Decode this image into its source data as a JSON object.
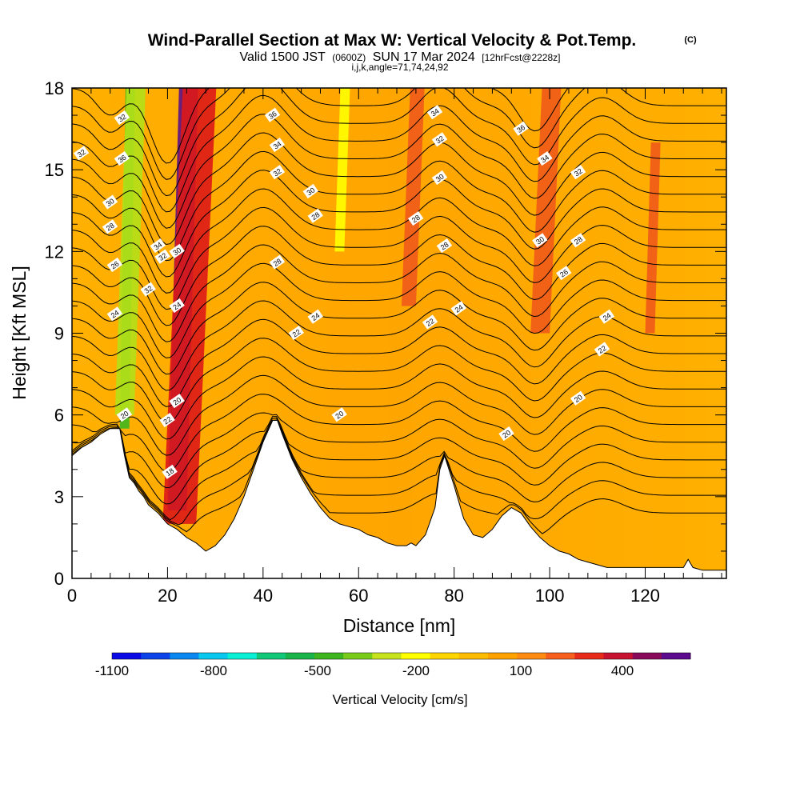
{
  "header": {
    "title": "Wind-Parallel Section at Max W: Vertical Velocity & Pot.Temp.",
    "title_mark": "(C)",
    "subtitle_valid": "Valid 1500 JST",
    "subtitle_utc": "(0600Z)",
    "subtitle_date": "SUN 17 Mar 2024",
    "subtitle_fcst": "[12hrFcst@2228z]",
    "subtitle_indices": "i,j,k,angle=71,74,24,92"
  },
  "chart_data": {
    "type": "contour_section",
    "xlabel": "Distance [nm]",
    "ylabel": "Height [Kft MSL]",
    "xlim": [
      0,
      137
    ],
    "ylim": [
      0,
      18
    ],
    "x_ticks": [
      0,
      20,
      40,
      60,
      80,
      100,
      120
    ],
    "y_ticks": [
      0,
      3,
      6,
      9,
      12,
      15,
      18
    ],
    "terrain_kft": {
      "x": [
        0,
        2,
        4,
        6,
        8,
        10,
        11,
        12,
        13,
        14,
        15,
        16,
        18,
        20,
        22,
        24,
        26,
        28,
        30,
        32,
        34,
        36,
        38,
        40,
        42,
        43,
        44,
        46,
        48,
        50,
        52,
        54,
        56,
        58,
        60,
        62,
        64,
        66,
        68,
        70,
        71,
        72,
        74,
        76,
        77,
        78,
        80,
        82,
        84,
        86,
        88,
        90,
        92,
        94,
        96,
        98,
        100,
        102,
        104,
        106,
        108,
        110,
        112,
        114,
        116,
        118,
        120,
        122,
        124,
        126,
        128,
        129,
        130,
        132,
        134,
        136,
        137
      ],
      "y": [
        4.5,
        4.8,
        5.0,
        5.3,
        5.5,
        5.5,
        4.5,
        3.7,
        3.5,
        3.2,
        3.0,
        2.7,
        2.4,
        2.0,
        1.8,
        1.5,
        1.3,
        1.0,
        1.2,
        1.6,
        2.2,
        3.0,
        4.0,
        5.0,
        5.8,
        5.8,
        5.3,
        4.4,
        3.7,
        3.1,
        2.6,
        2.2,
        2.0,
        1.9,
        1.8,
        1.6,
        1.5,
        1.3,
        1.2,
        1.2,
        1.3,
        1.2,
        1.6,
        2.6,
        4.0,
        4.5,
        3.4,
        2.2,
        1.6,
        1.5,
        1.8,
        2.3,
        2.6,
        2.4,
        1.9,
        1.5,
        1.2,
        1.0,
        0.9,
        0.7,
        0.6,
        0.5,
        0.4,
        0.4,
        0.4,
        0.4,
        0.4,
        0.4,
        0.4,
        0.4,
        0.4,
        0.7,
        0.4,
        0.3,
        0.3,
        0.3,
        0.3
      ]
    },
    "vertical_velocity_bands_cm_s": [
      {
        "x": [
          10,
          12
        ],
        "y": [
          5.5,
          18
        ],
        "value": -500,
        "color": "#3fb61e"
      },
      {
        "x": [
          9,
          13
        ],
        "y": [
          6,
          18
        ],
        "value": -300,
        "color": "#b4e01a"
      },
      {
        "x": [
          20,
          24
        ],
        "y": [
          2.5,
          18
        ],
        "value": 500,
        "color": "#5c0f86"
      },
      {
        "x": [
          19,
          26
        ],
        "y": [
          2.0,
          18
        ],
        "value": 300,
        "color": "#dd1818"
      },
      {
        "x": [
          69,
          72
        ],
        "y": [
          10,
          18
        ],
        "value": 150,
        "color": "#f05a1a"
      },
      {
        "x": [
          96,
          100
        ],
        "y": [
          9,
          18
        ],
        "value": 150,
        "color": "#f05a1a"
      },
      {
        "x": [
          55,
          57
        ],
        "y": [
          12,
          18
        ],
        "value": -200,
        "color": "#ffff00"
      },
      {
        "x": [
          120,
          122
        ],
        "y": [
          9,
          16
        ],
        "value": 150,
        "color": "#f05a1a"
      }
    ],
    "theta_contours_c": [
      18,
      20,
      22,
      24,
      26,
      28,
      30,
      32,
      34,
      36
    ],
    "theta_labels": [
      {
        "x": 20.5,
        "y": 3.9,
        "text": "18"
      },
      {
        "x": 11,
        "y": 6.0,
        "text": "20"
      },
      {
        "x": 22,
        "y": 6.5,
        "text": "20"
      },
      {
        "x": 56,
        "y": 6.0,
        "text": "20"
      },
      {
        "x": 91,
        "y": 5.3,
        "text": "20"
      },
      {
        "x": 106,
        "y": 6.6,
        "text": "20"
      },
      {
        "x": 20,
        "y": 5.8,
        "text": "22"
      },
      {
        "x": 47,
        "y": 9.0,
        "text": "22"
      },
      {
        "x": 75,
        "y": 9.4,
        "text": "22"
      },
      {
        "x": 111,
        "y": 8.4,
        "text": "22"
      },
      {
        "x": 9,
        "y": 9.7,
        "text": "24"
      },
      {
        "x": 22,
        "y": 10.0,
        "text": "24"
      },
      {
        "x": 51,
        "y": 9.6,
        "text": "24"
      },
      {
        "x": 81,
        "y": 9.9,
        "text": "24"
      },
      {
        "x": 112,
        "y": 9.6,
        "text": "24"
      },
      {
        "x": 9,
        "y": 11.5,
        "text": "26"
      },
      {
        "x": 103,
        "y": 11.2,
        "text": "26"
      },
      {
        "x": 8,
        "y": 12.9,
        "text": "28"
      },
      {
        "x": 43,
        "y": 11.6,
        "text": "28"
      },
      {
        "x": 51,
        "y": 13.3,
        "text": "28"
      },
      {
        "x": 72,
        "y": 13.2,
        "text": "28"
      },
      {
        "x": 78,
        "y": 12.2,
        "text": "28"
      },
      {
        "x": 106,
        "y": 12.4,
        "text": "28"
      },
      {
        "x": 22,
        "y": 12.0,
        "text": "30"
      },
      {
        "x": 50,
        "y": 14.2,
        "text": "30"
      },
      {
        "x": 77,
        "y": 14.7,
        "text": "30"
      },
      {
        "x": 98,
        "y": 12.4,
        "text": "30"
      },
      {
        "x": 8,
        "y": 13.8,
        "text": "30"
      },
      {
        "x": 16,
        "y": 10.6,
        "text": "32"
      },
      {
        "x": 19,
        "y": 11.8,
        "text": "32"
      },
      {
        "x": 43,
        "y": 14.9,
        "text": "32"
      },
      {
        "x": 77,
        "y": 16.1,
        "text": "32"
      },
      {
        "x": 106,
        "y": 14.9,
        "text": "32"
      },
      {
        "x": 2,
        "y": 15.6,
        "text": "32"
      },
      {
        "x": 10.5,
        "y": 16.9,
        "text": "32"
      },
      {
        "x": 18,
        "y": 12.2,
        "text": "34"
      },
      {
        "x": 43,
        "y": 15.9,
        "text": "34"
      },
      {
        "x": 76,
        "y": 17.1,
        "text": "34"
      },
      {
        "x": 99,
        "y": 15.4,
        "text": "34"
      },
      {
        "x": 10.5,
        "y": 15.4,
        "text": "36"
      },
      {
        "x": 42,
        "y": 17.0,
        "text": "36"
      },
      {
        "x": 94,
        "y": 16.5,
        "text": "36"
      }
    ]
  },
  "colorbar": {
    "title": "Vertical Velocity [cm/s]",
    "colors": [
      "#0a0ae6",
      "#0b43e8",
      "#0a86f0",
      "#09c8ef",
      "#08f0d6",
      "#10c878",
      "#18b44a",
      "#3db51e",
      "#7acc1a",
      "#c5e21c",
      "#ffff00",
      "#ffd500",
      "#ffbb00",
      "#ffa200",
      "#ff8c10",
      "#f75f1c",
      "#e82a18",
      "#c81232",
      "#8a0a5a",
      "#5c0a8e"
    ],
    "tick_labels": [
      "-1100",
      "-800",
      "-500",
      "-200",
      "100",
      "400"
    ]
  }
}
